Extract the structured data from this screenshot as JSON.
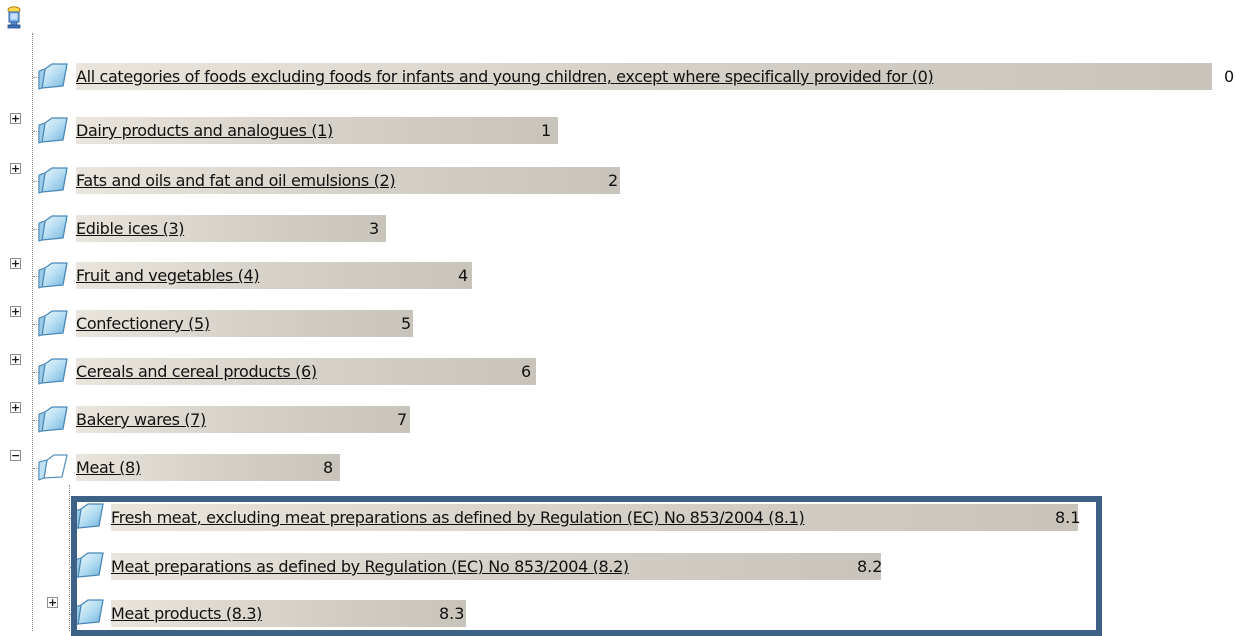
{
  "tree": {
    "root_icon": "database-computer-icon",
    "items": [
      {
        "label": "All categories of foods excluding foods for infants and young children, except where specifically provided for (0)",
        "code": "0",
        "expander": "",
        "icon": "folder-icon"
      },
      {
        "label": "Dairy products and analogues (1)",
        "code": "1",
        "expander": "+",
        "icon": "folder-icon"
      },
      {
        "label": "Fats and oils and fat and oil emulsions (2)",
        "code": "2",
        "expander": "+",
        "icon": "folder-icon"
      },
      {
        "label": "Edible ices (3)",
        "code": "3",
        "expander": "",
        "icon": "folder-icon"
      },
      {
        "label": "Fruit and vegetables (4)",
        "code": "4",
        "expander": "+",
        "icon": "folder-icon"
      },
      {
        "label": "Confectionery (5)",
        "code": "5",
        "expander": "+",
        "icon": "folder-icon"
      },
      {
        "label": "Cereals and cereal products (6)",
        "code": "6",
        "expander": "+",
        "icon": "folder-icon"
      },
      {
        "label": "Bakery wares (7)",
        "code": "7",
        "expander": "+",
        "icon": "folder-icon"
      },
      {
        "label": "Meat (8)",
        "code": "8",
        "expander": "−",
        "icon": "folder-open-icon"
      },
      {
        "label": "Fresh meat, excluding meat preparations as defined by Regulation (EC) No 853/2004 (8.1)",
        "code": "8.1",
        "expander": "",
        "icon": "folder-icon"
      },
      {
        "label": "Meat preparations as defined by Regulation (EC) No 853/2004 (8.2)",
        "code": "8.2",
        "expander": "",
        "icon": "folder-icon"
      },
      {
        "label": "Meat products (8.3)",
        "code": "8.3",
        "expander": "+",
        "icon": "folder-icon"
      }
    ]
  },
  "colors": {
    "highlight_border": "#3e6187",
    "bar": "#d4d0c8",
    "folder_face": "#a9d3ec",
    "folder_edge": "#4a87b6"
  }
}
